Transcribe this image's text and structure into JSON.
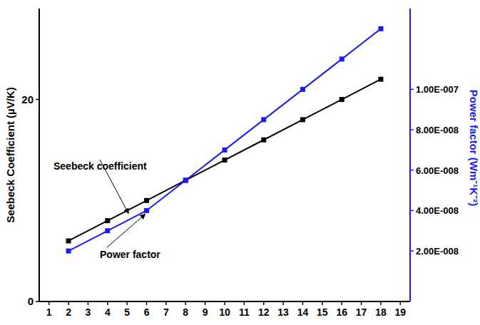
{
  "chart_data": {
    "type": "line",
    "x": [
      2,
      4,
      6,
      8,
      10,
      12,
      14,
      16,
      18
    ],
    "xlim": [
      0.5,
      19.5
    ],
    "xticks": [
      1,
      2,
      3,
      4,
      5,
      6,
      7,
      8,
      9,
      10,
      11,
      12,
      13,
      14,
      15,
      16,
      17,
      18,
      19
    ],
    "y_label": "Seebeck Coefficient (µV/K)",
    "ylim": [
      0,
      29
    ],
    "yticks": [
      0,
      20
    ],
    "y2_label": "Power factor (Wm⁻¹K⁻²)",
    "y2lim": [
      -5e-09,
      1.4e-07
    ],
    "y2ticks": [
      {
        "value": 2e-08,
        "label": "2.00E-008"
      },
      {
        "value": 4e-08,
        "label": "4.00E-008"
      },
      {
        "value": 6e-08,
        "label": "6.00E-008"
      },
      {
        "value": 8e-08,
        "label": "8.00E-008"
      },
      {
        "value": 1e-07,
        "label": "1.00E-007"
      }
    ],
    "grid": false,
    "series": [
      {
        "name": "Seebeck coefficient",
        "color": "#000000",
        "marker": "square",
        "line_style": "solid",
        "values": [
          6,
          8,
          10,
          12,
          14,
          16,
          18,
          20,
          22
        ]
      },
      {
        "name": "Power factor",
        "color": "#1a1aff",
        "marker": "square",
        "line_style": "solid",
        "axis": "y2",
        "values": [
          2e-08,
          3e-08,
          4e-08,
          5.5e-08,
          7e-08,
          8.5e-08,
          1e-07,
          1.15e-07,
          1.3e-07
        ]
      }
    ]
  }
}
